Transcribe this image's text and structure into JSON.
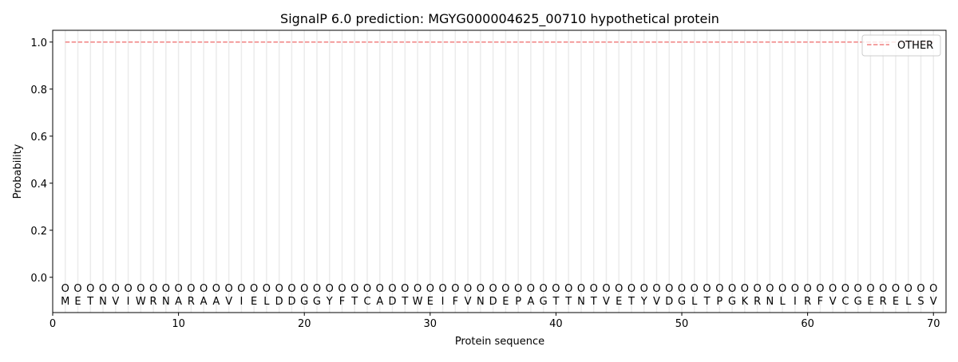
{
  "chart_data": {
    "type": "line",
    "title": "SignalP 6.0 prediction: MGYG000004625_00710 hypothetical protein",
    "xlabel": "Protein sequence",
    "ylabel": "Probability",
    "xlim": [
      0,
      71
    ],
    "ylim": [
      -0.15,
      1.05
    ],
    "xticks": [
      0,
      10,
      20,
      30,
      40,
      50,
      60,
      70
    ],
    "yticks": [
      0.0,
      0.2,
      0.4,
      0.6,
      0.8,
      1.0
    ],
    "ytick_labels": [
      "0.0",
      "0.2",
      "0.4",
      "0.6",
      "0.8",
      "1.0"
    ],
    "grid": "vertical lines at each residue",
    "legend_placement": "top-right",
    "sequence": [
      "M",
      "E",
      "T",
      "N",
      "V",
      "I",
      "W",
      "R",
      "N",
      "A",
      "R",
      "A",
      "A",
      "V",
      "I",
      "E",
      "L",
      "D",
      "D",
      "G",
      "G",
      "Y",
      "F",
      "T",
      "C",
      "A",
      "D",
      "T",
      "W",
      "E",
      "I",
      "F",
      "V",
      "N",
      "D",
      "E",
      "P",
      "A",
      "G",
      "T",
      "T",
      "N",
      "T",
      "V",
      "E",
      "T",
      "Y",
      "V",
      "D",
      "G",
      "L",
      "T",
      "P",
      "G",
      "K",
      "R",
      "N",
      "L",
      "I",
      "R",
      "F",
      "V",
      "C",
      "G",
      "E",
      "R",
      "E",
      "L",
      "S",
      "V"
    ],
    "region_label": "O",
    "region_label_y": -0.045,
    "series": [
      {
        "name": "OTHER",
        "color": "#f08080",
        "style": "dashed",
        "x_range": [
          1,
          70
        ],
        "value": 1.0
      }
    ]
  }
}
